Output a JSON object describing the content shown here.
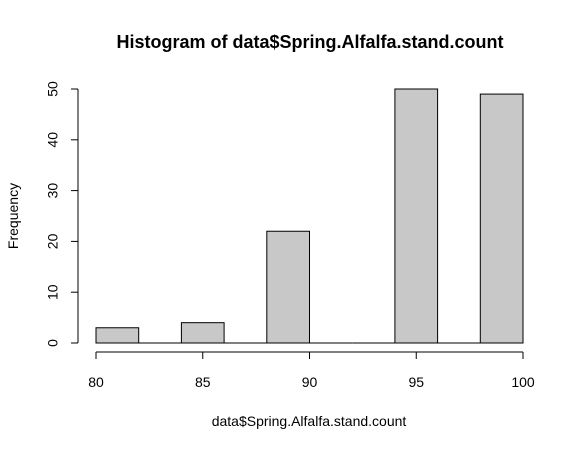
{
  "chart_data": {
    "type": "bar",
    "title": "Histogram of data$Spring.Alfalfa.stand.count",
    "xlabel": "data$Spring.Alfalfa.stand.count",
    "ylabel": "Frequency",
    "bins": [
      {
        "start": 80,
        "end": 82,
        "count": 3
      },
      {
        "start": 82,
        "end": 84,
        "count": 0
      },
      {
        "start": 84,
        "end": 86,
        "count": 4
      },
      {
        "start": 86,
        "end": 88,
        "count": 0
      },
      {
        "start": 88,
        "end": 90,
        "count": 22
      },
      {
        "start": 90,
        "end": 92,
        "count": 0
      },
      {
        "start": 92,
        "end": 94,
        "count": 0
      },
      {
        "start": 94,
        "end": 96,
        "count": 50
      },
      {
        "start": 96,
        "end": 98,
        "count": 0
      },
      {
        "start": 98,
        "end": 100,
        "count": 49
      }
    ],
    "xlim": [
      80,
      100
    ],
    "ylim": [
      0,
      50
    ],
    "x_ticks": [
      80,
      85,
      90,
      95,
      100
    ],
    "y_ticks": [
      0,
      10,
      20,
      30,
      40,
      50
    ],
    "bar_fill": "#c8c8c8",
    "bar_stroke": "#000000",
    "grid": false
  }
}
